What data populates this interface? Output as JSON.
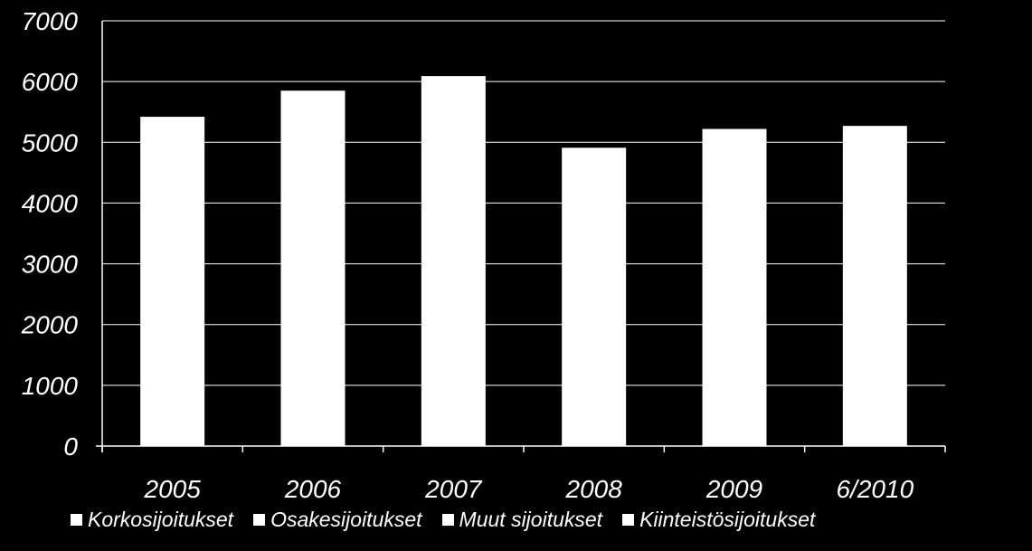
{
  "chart_data": {
    "type": "bar",
    "categories": [
      "2005",
      "2006",
      "2007",
      "2008",
      "2009",
      "6/2010"
    ],
    "series": [
      {
        "name": "Korkosijoitukset",
        "values": [
          0,
          0,
          0,
          0,
          0,
          0
        ]
      },
      {
        "name": "Osakesijoitukset",
        "values": [
          0,
          0,
          0,
          0,
          0,
          0
        ]
      },
      {
        "name": "Muut sijoitukset",
        "values": [
          0,
          0,
          0,
          0,
          0,
          0
        ]
      },
      {
        "name": "Kiinteistösijoitukset",
        "values": [
          5420,
          5850,
          6090,
          4910,
          5220,
          5270
        ]
      }
    ],
    "ylim": [
      0,
      7000
    ],
    "yticks": [
      "0",
      "1000",
      "2000",
      "3000",
      "4000",
      "5000",
      "6000",
      "7000"
    ],
    "grid": true,
    "legend_position": "bottom",
    "colors": {
      "background": "#000000",
      "bars": "#ffffff",
      "gridlines": "#ffffff",
      "text": "#ffffff"
    }
  }
}
